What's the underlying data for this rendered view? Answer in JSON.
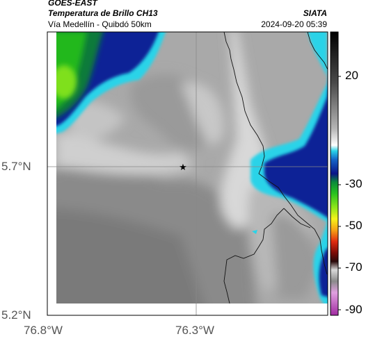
{
  "header": {
    "satellite": "GOES-EAST",
    "product": "Temperatura de Brillo CH13",
    "region": "Vía Medellín - Quibdó 50km",
    "organization": "SIATA",
    "datetime": "2024-09-20 05:39"
  },
  "map": {
    "lat_labels": [
      "5.7°N",
      "5.2°N"
    ],
    "lon_labels": [
      "76.8°W",
      "76.3°W"
    ],
    "marker": "star-marker"
  },
  "colorbar": {
    "ticks": [
      "20",
      "-30",
      "-50",
      "-70",
      "-90"
    ]
  },
  "colors": {
    "cloud_cold": "#0a1c8c",
    "cyan": "#2bd4e8",
    "green": "#1aa61a",
    "gray_field": "#8a8a8a"
  }
}
